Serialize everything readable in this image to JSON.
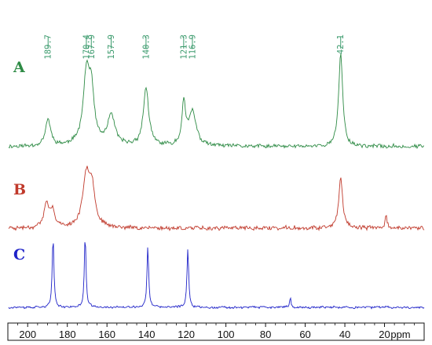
{
  "chart_data": {
    "type": "line",
    "title": "",
    "xlabel": "ppm",
    "ylabel": "",
    "x_reversed": true,
    "xlim": [
      210,
      0
    ],
    "x_ticks": [
      {
        "value": 200,
        "label": "200"
      },
      {
        "value": 180,
        "label": "180"
      },
      {
        "value": 160,
        "label": "160"
      },
      {
        "value": 140,
        "label": "140"
      },
      {
        "value": 120,
        "label": "120"
      },
      {
        "value": 100,
        "label": "100"
      },
      {
        "value": 80,
        "label": "80"
      },
      {
        "value": 60,
        "label": "60"
      },
      {
        "value": 40,
        "label": "40"
      },
      {
        "value": 20,
        "label": "20"
      }
    ],
    "peak_annotations": [
      {
        "value": 189.7,
        "label": "189.7"
      },
      {
        "value": 170.4,
        "label": "170.4"
      },
      {
        "value": 167.9,
        "label": "167.9"
      },
      {
        "value": 157.9,
        "label": "157.9"
      },
      {
        "value": 140.3,
        "label": "140.3"
      },
      {
        "value": 121.3,
        "label": "121.3"
      },
      {
        "value": 116.9,
        "label": "116.9"
      },
      {
        "value": 42.1,
        "label": "42.1"
      }
    ],
    "annotation_color": "#3a9a6c",
    "series": [
      {
        "name": "A",
        "color": "#2e8b45",
        "noise": 0.035,
        "peaks": [
          {
            "x": 189.7,
            "height": 0.28,
            "width": 1.6
          },
          {
            "x": 170.4,
            "height": 0.72,
            "width": 2.0
          },
          {
            "x": 167.9,
            "height": 0.5,
            "width": 1.7
          },
          {
            "x": 157.9,
            "height": 0.32,
            "width": 2.2
          },
          {
            "x": 140.3,
            "height": 0.62,
            "width": 1.6
          },
          {
            "x": 121.3,
            "height": 0.45,
            "width": 1.1
          },
          {
            "x": 116.9,
            "height": 0.36,
            "width": 2.2
          },
          {
            "x": 42.1,
            "height": 1.0,
            "width": 1.2
          }
        ]
      },
      {
        "name": "B",
        "color": "#c0392b",
        "noise": 0.05,
        "peaks": [
          {
            "x": 190.5,
            "height": 0.35,
            "width": 1.5
          },
          {
            "x": 187.6,
            "height": 0.25,
            "width": 1.3
          },
          {
            "x": 170.4,
            "height": 0.75,
            "width": 2.1
          },
          {
            "x": 167.6,
            "height": 0.55,
            "width": 1.8
          },
          {
            "x": 42.1,
            "height": 0.78,
            "width": 1.1
          },
          {
            "x": 19.2,
            "height": 0.18,
            "width": 0.7
          }
        ]
      },
      {
        "name": "C",
        "color": "#1e22c8",
        "noise": 0.025,
        "peaks": [
          {
            "x": 187.2,
            "height": 0.98,
            "width": 0.5
          },
          {
            "x": 171.0,
            "height": 1.0,
            "width": 0.5
          },
          {
            "x": 139.4,
            "height": 0.85,
            "width": 0.5
          },
          {
            "x": 119.2,
            "height": 0.83,
            "width": 0.5
          },
          {
            "x": 67.5,
            "height": 0.14,
            "width": 0.4
          }
        ]
      }
    ]
  }
}
